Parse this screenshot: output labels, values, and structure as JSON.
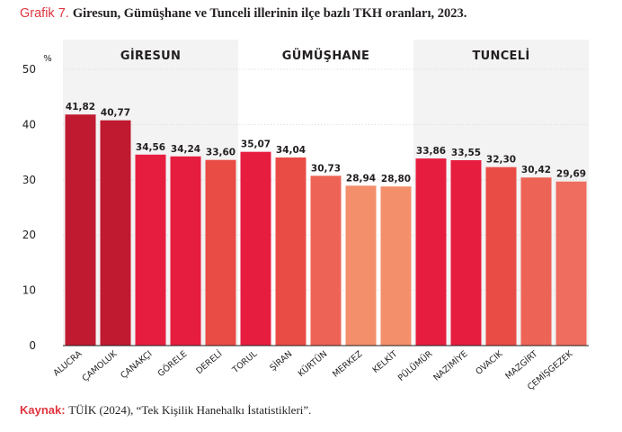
{
  "header": {
    "lead": "Grafik 7.",
    "title": "Giresun, Gümüşhane ve Tunceli illerinin ilçe bazlı TKH oranları, 2023."
  },
  "footer": {
    "lead": "Kaynak:",
    "text": "TÜİK (2024), “Tek Kişilik Hanehalkı İstatistikleri”."
  },
  "chart_data": {
    "type": "bar",
    "ylabel": "%",
    "ylim": [
      0,
      50
    ],
    "yticks": [
      "0",
      "10",
      "20",
      "30",
      "40",
      "50"
    ],
    "grid": true,
    "legend": "none",
    "groups": [
      {
        "name": "GİRESUN",
        "start": 0,
        "end": 4,
        "shaded": true
      },
      {
        "name": "GÜMÜŞHANE",
        "start": 5,
        "end": 9,
        "shaded": false
      },
      {
        "name": "TUNCELİ",
        "start": 10,
        "end": 14,
        "shaded": true
      }
    ],
    "categories": [
      "ALUCRA",
      "ÇAMOLUK",
      "ÇANAKÇI",
      "GÖRELE",
      "DERELİ",
      "TORUL",
      "ŞİRAN",
      "KÜRTÜN",
      "MERKEZ",
      "KELKİT",
      "PÜLÜMÜR",
      "NAZIMİYE",
      "OVACIK",
      "MAZGİRT",
      "ÇEMİŞGEZEK"
    ],
    "values": [
      41.82,
      40.77,
      34.56,
      34.24,
      33.6,
      35.07,
      34.04,
      30.73,
      28.94,
      28.8,
      33.86,
      33.55,
      32.3,
      30.42,
      29.69
    ],
    "value_labels": [
      "41,82",
      "40,77",
      "34,56",
      "34,24",
      "33,60",
      "35,07",
      "34,04",
      "30,73",
      "28,94",
      "28,80",
      "33,86",
      "33,55",
      "32,30",
      "30,42",
      "29,69"
    ],
    "colors": {
      "shade": "#f3f3f3",
      "gridline": "#d9d9d9",
      "axis": "#231f20",
      "bars": [
        "#c01a31",
        "#c01a31",
        "#e71d40",
        "#e71d40",
        "#e94c45",
        "#e71d40",
        "#e94c45",
        "#ed6456",
        "#f38f6b",
        "#f38f6b",
        "#e71d40",
        "#e71d40",
        "#e94c45",
        "#ed6456",
        "#ef6d5f"
      ]
    }
  }
}
